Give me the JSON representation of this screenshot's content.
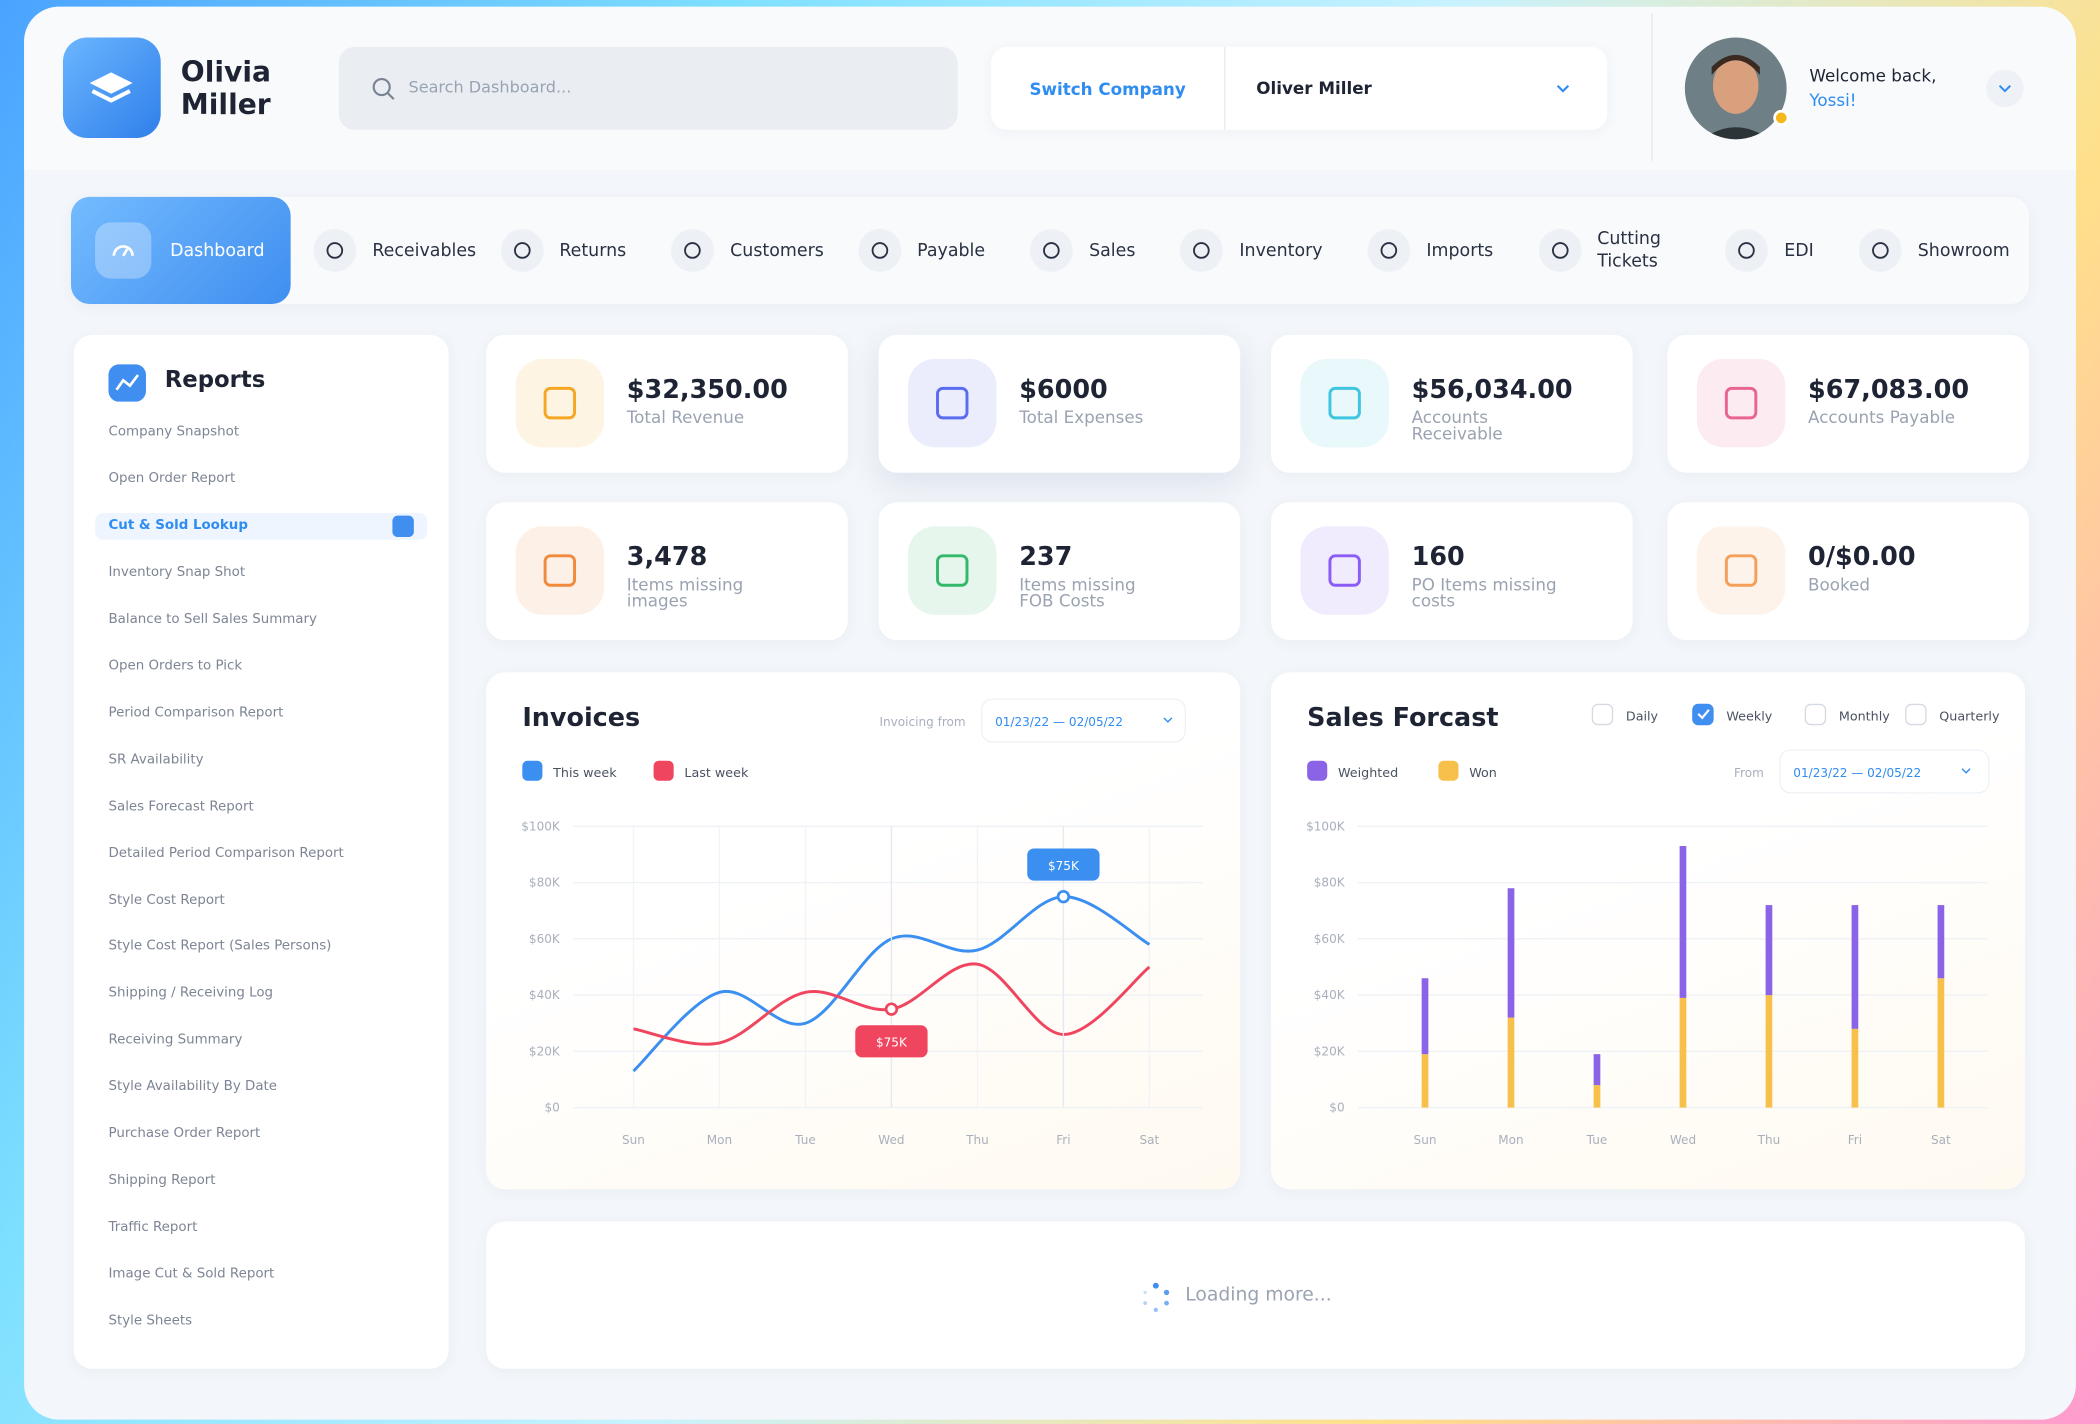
{
  "header": {
    "brand": "Olivia Miller",
    "search_placeholder": "Search Dashboard...",
    "switch_label": "Switch Company",
    "company": "Oliver Miller",
    "welcome": "Welcome back,",
    "user": "Yossi!"
  },
  "nav": {
    "active": "Dashboard",
    "items": [
      "Receivables",
      "Returns",
      "Customers",
      "Payable",
      "Sales",
      "Inventory",
      "Imports",
      "Cutting Tickets",
      "EDI",
      "Showroom"
    ]
  },
  "sidebar": {
    "title": "Reports",
    "active_index": 2,
    "items": [
      "Company Snapshot",
      "Open Order Report",
      "Cut & Sold Lookup",
      "Inventory Snap Shot",
      "Balance to Sell Sales Summary",
      "Open Orders to Pick",
      "Period Comparison Report",
      "SR Availability",
      "Sales Forecast Report",
      "Detailed Period Comparison Report",
      "Style Cost Report",
      "Style Cost Report (Sales Persons)",
      "Shipping / Receiving Log",
      "Receiving Summary",
      "Style Availability By Date",
      "Purchase Order Report",
      "Shipping Report",
      "Traffic Report",
      "Image Cut & Sold Report",
      "Style Sheets"
    ]
  },
  "stats": [
    {
      "value": "$32,350.00",
      "label": "Total Revenue",
      "color": "#f5a623"
    },
    {
      "value": "$6000",
      "label": "Total Expenses",
      "color": "#5b6cf0"
    },
    {
      "value": "$56,034.00",
      "label": "Accounts Receivable",
      "color": "#3ec6e0"
    },
    {
      "value": "$67,083.00",
      "label": "Accounts Payable",
      "color": "#e8658f"
    },
    {
      "value": "3,478",
      "label": "Items missing images",
      "color": "#f08a3c"
    },
    {
      "value": "237",
      "label": "Items missing FOB Costs",
      "color": "#34b86a"
    },
    {
      "value": "160",
      "label": "PO Items missing costs",
      "color": "#8b5cf6"
    },
    {
      "value": "0/$0.00",
      "label": "Booked",
      "color": "#f5a05a"
    }
  ],
  "chart_data": [
    {
      "type": "line",
      "title": "Invoices",
      "range_label": "Invoicing from",
      "range": "01/23/22 — 02/05/22",
      "categories": [
        "Sun",
        "Mon",
        "Tue",
        "Wed",
        "Thu",
        "Fri",
        "Sat"
      ],
      "series": [
        {
          "name": "This week",
          "color": "#3b8ff0",
          "values": [
            13000,
            41000,
            30000,
            60000,
            56000,
            75000,
            58000
          ]
        },
        {
          "name": "Last week",
          "color": "#f0455f",
          "values": [
            28000,
            23000,
            41000,
            35000,
            51000,
            26000,
            50000
          ]
        }
      ],
      "annotations": [
        "$75K",
        "$75K"
      ],
      "ylim": [
        0,
        100000
      ],
      "yticks": [
        {
          "value": 0,
          "label": "$0"
        },
        {
          "value": 20000,
          "label": "$20K"
        },
        {
          "value": 40000,
          "label": "$40K"
        },
        {
          "value": 60000,
          "label": "$60K"
        },
        {
          "value": 80000,
          "label": "$80K"
        },
        {
          "value": 100000,
          "label": "$100K"
        }
      ],
      "grid": true
    },
    {
      "type": "stacked_bar",
      "title": "Sales Forcast",
      "range_label": "From",
      "range": "01/23/22 — 02/05/22",
      "period_options": [
        {
          "label": "Daily",
          "checked": false
        },
        {
          "label": "Weekly",
          "checked": true
        },
        {
          "label": "Monthly",
          "checked": false
        },
        {
          "label": "Quarterly",
          "checked": false
        }
      ],
      "categories": [
        "Sun",
        "Mon",
        "Tue",
        "Wed",
        "Thu",
        "Fri",
        "Sat"
      ],
      "series": [
        {
          "name": "Won",
          "color": "#f7c04a",
          "values": [
            19000,
            32000,
            8000,
            39000,
            40000,
            28000,
            46000
          ]
        },
        {
          "name": "Weighted",
          "color": "#8a63e6",
          "values": [
            27000,
            46000,
            11000,
            54000,
            32000,
            44000,
            26000
          ]
        }
      ],
      "ylim": [
        0,
        100000
      ],
      "yticks": [
        {
          "value": 0,
          "label": "$0"
        },
        {
          "value": 20000,
          "label": "$20K"
        },
        {
          "value": 40000,
          "label": "$40K"
        },
        {
          "value": 60000,
          "label": "$60K"
        },
        {
          "value": 80000,
          "label": "$80K"
        },
        {
          "value": 100000,
          "label": "$100K"
        }
      ],
      "grid": true
    }
  ],
  "loading": "Loading more..."
}
